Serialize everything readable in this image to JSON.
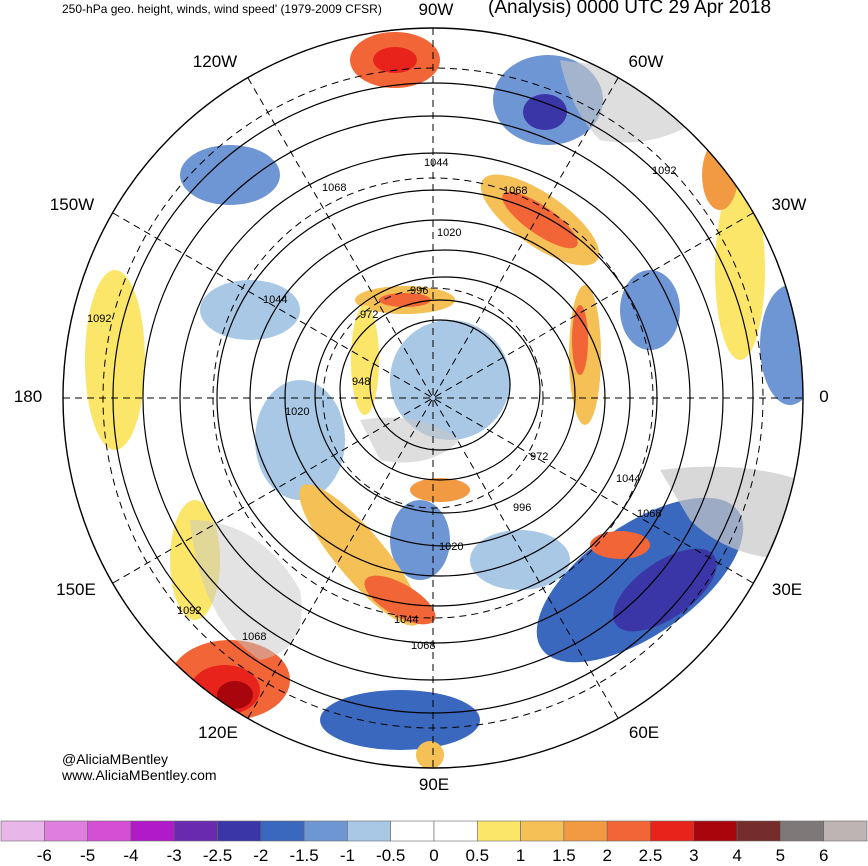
{
  "header": {
    "left_title": "250-hPa geo. height, winds, wind speed' (1979-2009 CFSR)",
    "right_title": "(Analysis) 0000 UTC 29 Apr 2018"
  },
  "longitude_labels": [
    "90W",
    "120W",
    "60W",
    "150W",
    "30W",
    "180",
    "0",
    "150E",
    "30E",
    "120E",
    "60E",
    "90E"
  ],
  "contour_labels": [
    "1044",
    "1068",
    "1092",
    "1068",
    "1020",
    "1044",
    "996",
    "972",
    "948",
    "1020",
    "1092",
    "972",
    "1044",
    "996",
    "1068",
    "1020",
    "1044",
    "1092",
    "1068",
    "1068"
  ],
  "credits": {
    "handle": "@AliciaMBentley",
    "website": "www.AliciaMBentley.com"
  },
  "colorbar": {
    "ticks": [
      "-6",
      "-5",
      "-4",
      "-3",
      "-2.5",
      "-2",
      "-1.5",
      "-1",
      "-0.5",
      "0",
      "0.5",
      "1",
      "1.5",
      "2",
      "2.5",
      "3",
      "4",
      "5",
      "6"
    ],
    "colors": [
      "#e9b6e9",
      "#e07ee0",
      "#d44fd4",
      "#b01ac8",
      "#6a2ab0",
      "#3a36a8",
      "#3a68bf",
      "#6f96d4",
      "#a8c8e6",
      "#ffffff",
      "#ffffff",
      "#fbe66a",
      "#f5c055",
      "#f29a42",
      "#f16537",
      "#e8231c",
      "#a8050d",
      "#742c2c",
      "#7f7878",
      "#bdb4b4"
    ]
  }
}
